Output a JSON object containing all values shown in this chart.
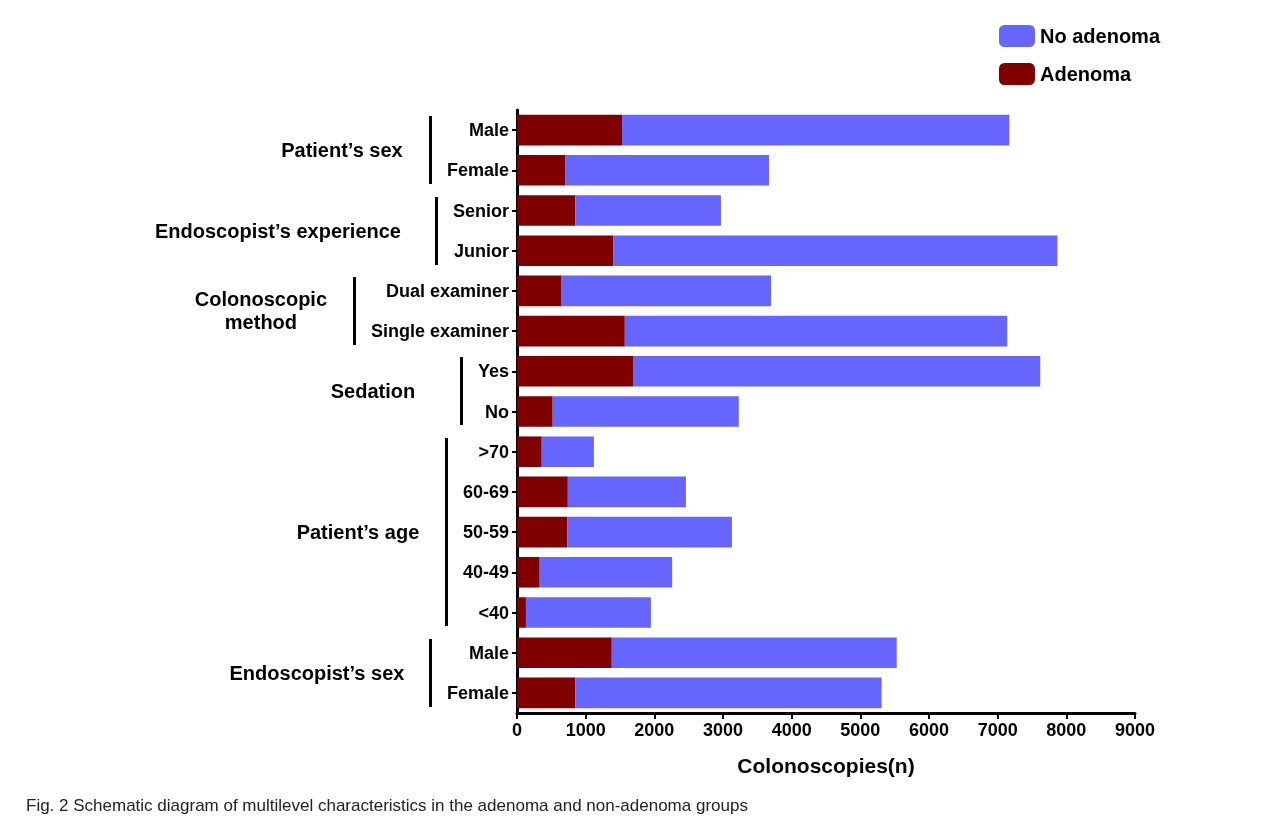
{
  "chart_data": {
    "type": "bar",
    "orientation": "horizontal",
    "stacked": true,
    "categories": [
      "Male",
      "Female",
      "Senior",
      "Junior",
      "Dual examiner",
      "Single examiner",
      "Yes",
      "No",
      ">70",
      "60-69",
      "50-59",
      "40-49",
      "<40",
      "Male",
      "Female"
    ],
    "series": [
      {
        "name": "Adenoma",
        "color": "#800000",
        "values": [
          1530,
          700,
          850,
          1400,
          650,
          1570,
          1690,
          520,
          360,
          740,
          730,
          330,
          130,
          1380,
          850
        ]
      },
      {
        "name": "No adenoma",
        "color": "#6666ff",
        "values": [
          5640,
          2970,
          2120,
          6470,
          3050,
          5570,
          5930,
          2710,
          760,
          1720,
          2400,
          1930,
          1820,
          4150,
          4460
        ]
      }
    ],
    "xlim": [
      0,
      9000
    ],
    "xticks": [
      0,
      1000,
      2000,
      3000,
      4000,
      5000,
      6000,
      7000,
      8000,
      9000
    ],
    "xlabel": "Colonoscopies(n)",
    "legend": "top right",
    "grid": false,
    "annotations": [
      "Patient’s sex",
      "Endoscopist’s experience",
      "Colonoscopic method",
      "Sedation",
      "Patient’s age",
      "Endoscopist’s sex",
      "Fig. 2  Schematic diagram of multilevel characteristics in the adenoma and non-adenoma groups"
    ]
  }
}
